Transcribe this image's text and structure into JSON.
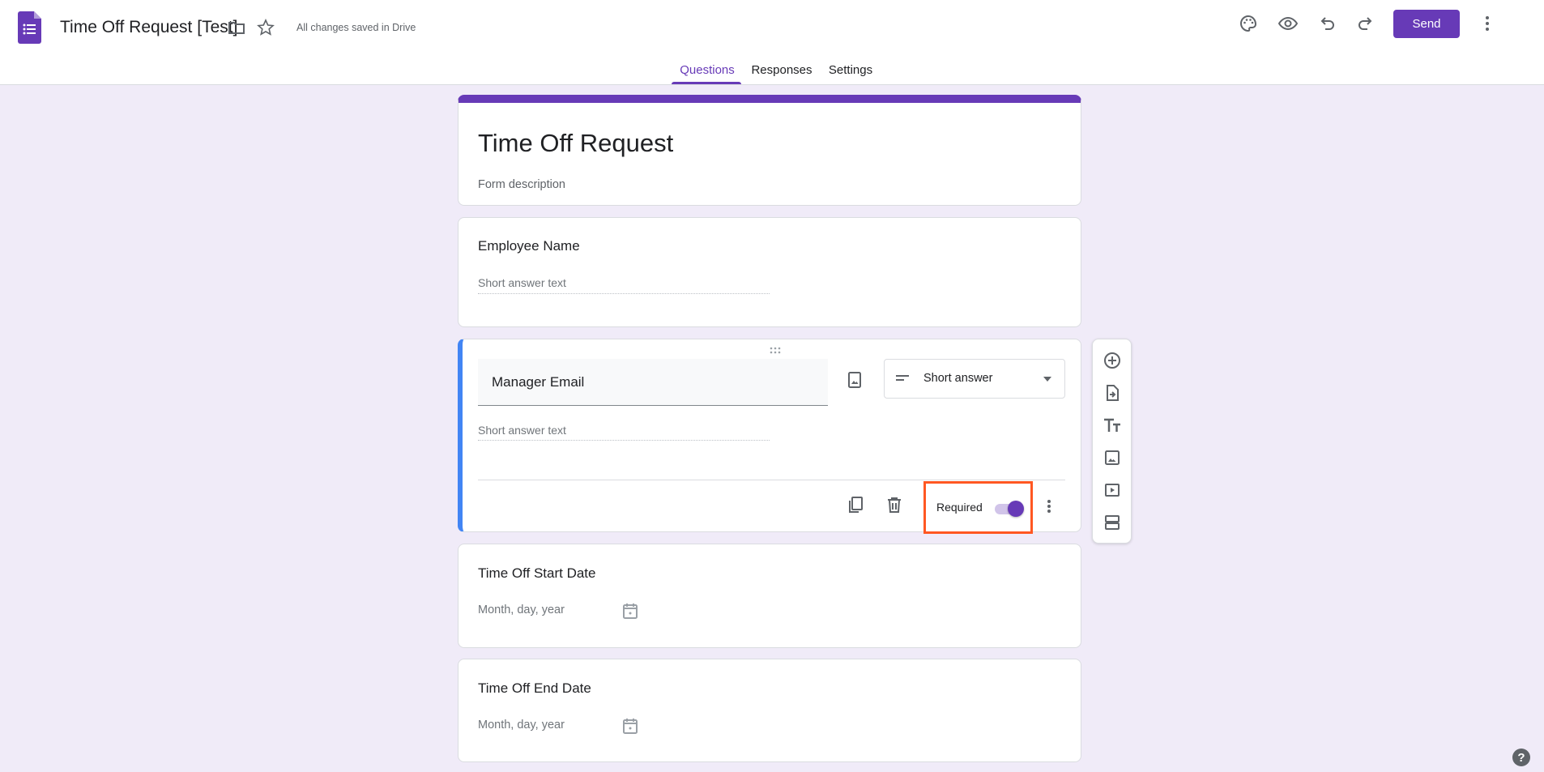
{
  "header": {
    "doc_title": "Time Off Request [Test]",
    "save_status": "All changes saved in Drive",
    "send_label": "Send",
    "accent": "#673ab7",
    "icons": [
      "forms-logo",
      "folder-icon",
      "star-icon",
      "palette-icon",
      "eye-icon",
      "undo-icon",
      "redo-icon",
      "more-vert-icon"
    ]
  },
  "tabs": [
    {
      "label": "Questions",
      "active": true
    },
    {
      "label": "Responses"
    },
    {
      "label": "Settings"
    }
  ],
  "form": {
    "title": "Time Off Request",
    "description": "Form description"
  },
  "questions": [
    {
      "title": "Employee Name",
      "hint": "Short answer text"
    },
    {
      "title": "Manager Email",
      "hint": "Short answer text",
      "type": "Short answer",
      "required_label": "Required",
      "required": true
    },
    {
      "title": "Time Off Start Date",
      "hint": "Month, day, year"
    },
    {
      "title": "Time Off End Date",
      "hint": "Month, day, year"
    }
  ],
  "toolbar": [
    "add-question-icon",
    "import-questions-icon",
    "add-title-icon",
    "add-image-icon",
    "add-video-icon",
    "add-section-icon"
  ],
  "highlight_color": "#ff5722"
}
